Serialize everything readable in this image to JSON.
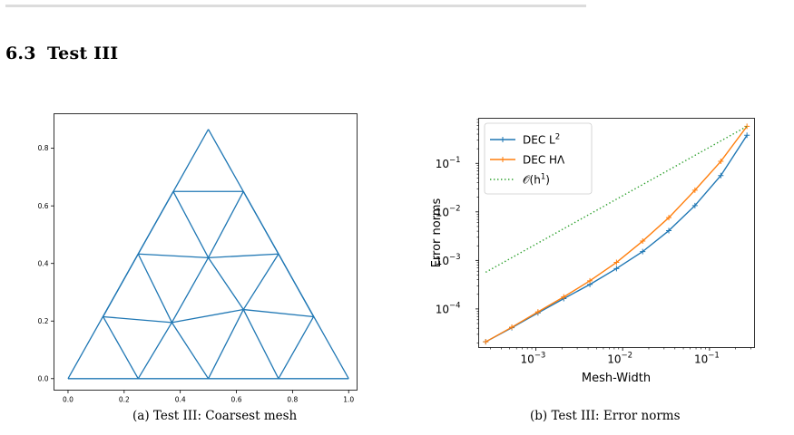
{
  "section": {
    "number": "6.3",
    "title": "Test III"
  },
  "captions": {
    "a": "(a) Test III: Coarsest mesh",
    "b": "(b) Test III: Error norms"
  },
  "colors": {
    "blue": "#1f77b4",
    "orange": "#ff7f0e",
    "green": "#2ca02c"
  },
  "chart_data": [
    {
      "type": "mesh",
      "xlim": [
        -0.05,
        1.03
      ],
      "ylim": [
        -0.04,
        0.92
      ],
      "xticks": [
        0.0,
        0.2,
        0.4,
        0.6,
        0.8,
        1.0
      ],
      "xtick_labels": [
        "0.0",
        "0.2",
        "0.4",
        "0.6",
        "0.8",
        "1.0"
      ],
      "yticks": [
        0.0,
        0.2,
        0.4,
        0.6,
        0.8
      ],
      "ytick_labels": [
        "0.0",
        "0.2",
        "0.4",
        "0.6",
        "0.8"
      ],
      "vertices": [
        [
          0.0,
          0.0
        ],
        [
          0.25,
          0.0
        ],
        [
          0.5,
          0.0
        ],
        [
          0.75,
          0.0
        ],
        [
          1.0,
          0.0
        ],
        [
          0.125,
          0.215
        ],
        [
          0.37,
          0.195
        ],
        [
          0.625,
          0.24
        ],
        [
          0.875,
          0.215
        ],
        [
          0.25,
          0.433
        ],
        [
          0.5,
          0.42
        ],
        [
          0.75,
          0.433
        ],
        [
          0.375,
          0.65
        ],
        [
          0.625,
          0.65
        ],
        [
          0.5,
          0.866
        ]
      ],
      "edges": [
        [
          0,
          4
        ],
        [
          0,
          14
        ],
        [
          4,
          14
        ],
        [
          5,
          6
        ],
        [
          6,
          7
        ],
        [
          7,
          8
        ],
        [
          9,
          10
        ],
        [
          10,
          11
        ],
        [
          12,
          13
        ],
        [
          1,
          5
        ],
        [
          1,
          6
        ],
        [
          2,
          6
        ],
        [
          2,
          7
        ],
        [
          3,
          7
        ],
        [
          3,
          8
        ],
        [
          5,
          9
        ],
        [
          6,
          9
        ],
        [
          6,
          10
        ],
        [
          7,
          10
        ],
        [
          7,
          11
        ],
        [
          8,
          11
        ],
        [
          9,
          12
        ],
        [
          10,
          12
        ],
        [
          10,
          13
        ],
        [
          11,
          13
        ]
      ]
    },
    {
      "type": "line",
      "xscale": "log",
      "yscale": "log",
      "xlim": [
        0.00022,
        0.33
      ],
      "ylim": [
        1.6e-05,
        0.85
      ],
      "xlabel": "Mesh-Width",
      "ylabel": "Error norms",
      "xticks": [
        0.001,
        0.01,
        0.1
      ],
      "xtick_labels": [
        "10",
        "10",
        "10"
      ],
      "xtick_exponents": [
        "−3",
        "−2",
        "−1"
      ],
      "yticks": [
        0.0001,
        0.001,
        0.01,
        0.1
      ],
      "ytick_labels": [
        "10",
        "10",
        "10",
        "10"
      ],
      "ytick_exponents": [
        "−4",
        "−3",
        "−2",
        "−1"
      ],
      "legend_position": "top-left",
      "series": [
        {
          "name": "DEC L",
          "name_sup": "2",
          "color_key": "blue",
          "style": "solid-plus",
          "x": [
            0.000265,
            0.00053,
            0.00106,
            0.0021,
            0.0042,
            0.0085,
            0.017,
            0.034,
            0.068,
            0.135,
            0.27
          ],
          "y": [
            2.1e-05,
            4.1e-05,
            8.3e-05,
            0.000163,
            0.00032,
            0.00068,
            0.00152,
            0.0041,
            0.0135,
            0.056,
            0.38
          ]
        },
        {
          "name": "DEC HΛ",
          "color_key": "orange",
          "style": "solid-plus",
          "x": [
            0.000265,
            0.00053,
            0.00106,
            0.0021,
            0.0042,
            0.0085,
            0.017,
            0.034,
            0.068,
            0.135,
            0.27
          ],
          "y": [
            2.1e-05,
            4.2e-05,
            8.7e-05,
            0.000177,
            0.00038,
            0.00091,
            0.0025,
            0.0076,
            0.028,
            0.11,
            0.58
          ]
        },
        {
          "name": "𝒪(h",
          "name_sup": "1",
          "name_tail": ")",
          "color_key": "green",
          "style": "dotted",
          "x": [
            0.000265,
            0.27
          ],
          "y": [
            0.00057,
            0.58
          ]
        }
      ]
    }
  ]
}
